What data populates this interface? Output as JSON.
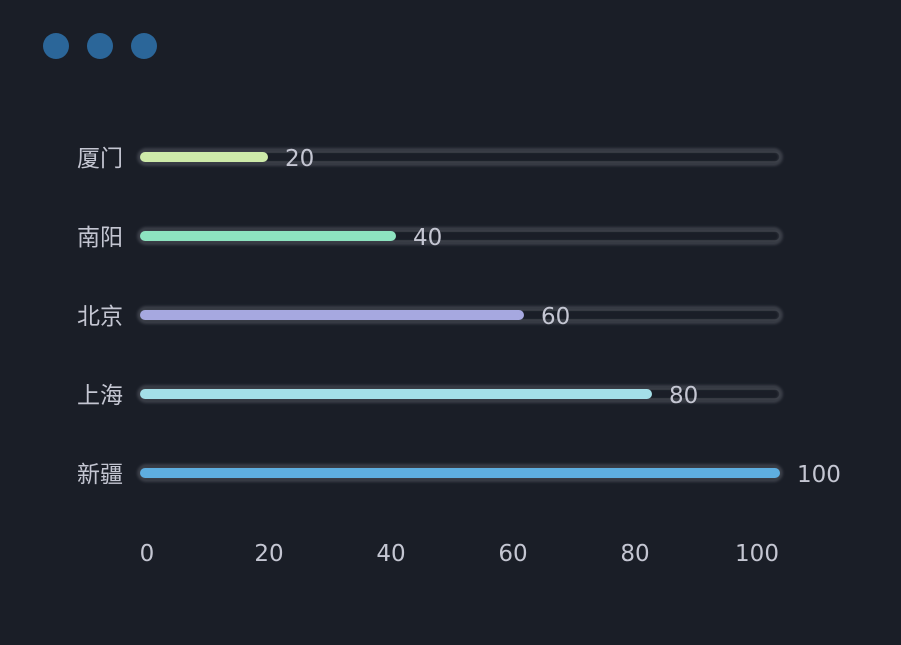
{
  "window_dots": {
    "color": "#2b6699",
    "count": 3
  },
  "chart_data": {
    "type": "bar",
    "orientation": "horizontal",
    "categories": [
      "厦门",
      "南阳",
      "北京",
      "上海",
      "新疆"
    ],
    "values": [
      20,
      40,
      60,
      80,
      100
    ],
    "colors": [
      "#cdeaa9",
      "#8de3c0",
      "#a6a8e0",
      "#a4dfe8",
      "#5eaee0"
    ],
    "xlim": [
      0,
      100
    ],
    "x_ticks": [
      "0",
      "20",
      "40",
      "60",
      "80",
      "100"
    ],
    "data_labels": [
      "20",
      "40",
      "60",
      "80",
      "100"
    ],
    "background_track": true,
    "grid": false,
    "title": "",
    "xlabel": "",
    "ylabel": ""
  }
}
